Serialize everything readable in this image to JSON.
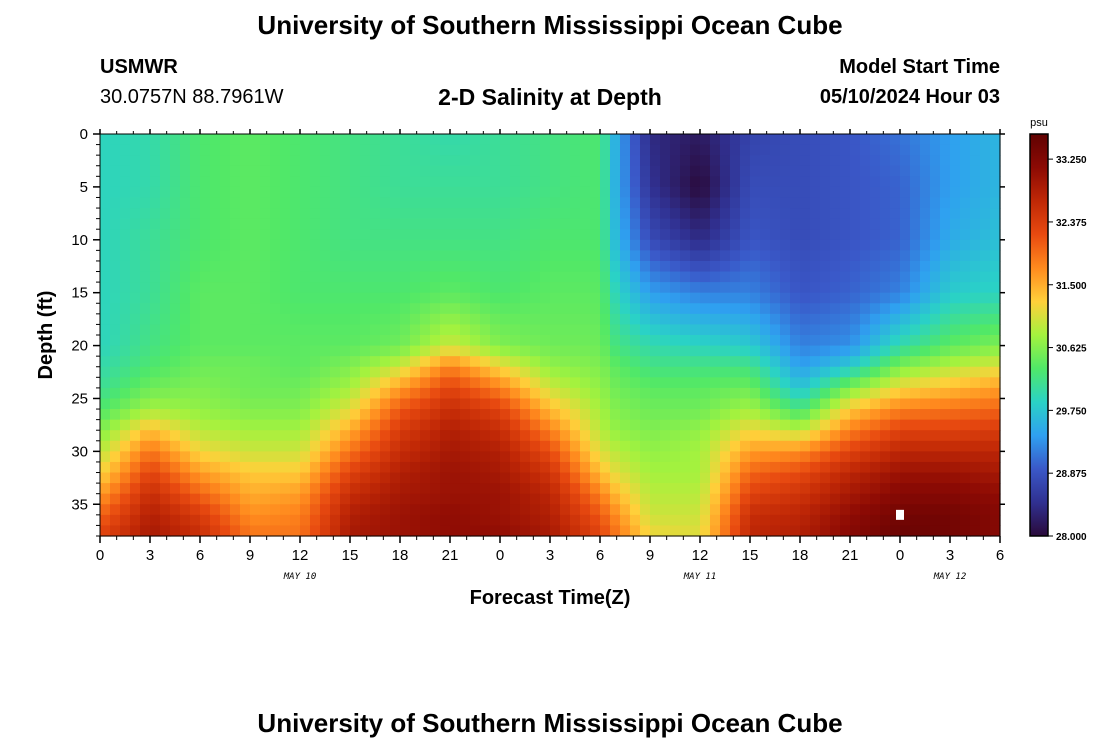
{
  "header": {
    "title": "University of Southern Mississippi Ocean Cube",
    "station": "USMWR",
    "coords": "30.0757N  88.7961W",
    "subtitle": "2-D Salinity at Depth",
    "model_start_label": "Model Start Time",
    "model_start_value": "05/10/2024 Hour 03"
  },
  "footer": {
    "title": "University of Southern Mississippi Ocean Cube"
  },
  "chart_data": {
    "type": "heatmap",
    "title": "2-D Salinity at Depth",
    "xlabel": "Forecast Time(Z)",
    "ylabel": "Depth (ft)",
    "x_ticks": [
      "0",
      "3",
      "6",
      "9",
      "12",
      "15",
      "18",
      "21",
      "0",
      "3",
      "6",
      "9",
      "12",
      "15",
      "18",
      "21",
      "0",
      "3",
      "6"
    ],
    "x_dates": [
      "MAY 10",
      "MAY 11",
      "MAY 12"
    ],
    "y_ticks": [
      0,
      5,
      10,
      15,
      20,
      25,
      30,
      35
    ],
    "ylim": [
      0,
      38
    ],
    "x_range_hours": [
      0,
      54
    ],
    "colorbar": {
      "unit": "psu",
      "range": [
        28.0,
        33.6
      ],
      "ticks": [
        "33.250",
        "32.375",
        "31.500",
        "30.625",
        "29.750",
        "28.875",
        "28.000"
      ],
      "colors": [
        "#2a0a3a",
        "#303090",
        "#3a58c8",
        "#2fa0f0",
        "#2ad2c6",
        "#50e868",
        "#a4f23e",
        "#ffd03a",
        "#ff8a1e",
        "#e84a10",
        "#c02806",
        "#8c0a04",
        "#600202"
      ]
    },
    "salinity_grid": {
      "time_hours": [
        0,
        3,
        6,
        9,
        12,
        15,
        18,
        21,
        24,
        27,
        30,
        31,
        33,
        36,
        39,
        42,
        45,
        48,
        51,
        54
      ],
      "depth_ft": [
        0,
        5,
        10,
        15,
        20,
        22,
        24,
        26,
        28,
        30,
        32,
        34,
        36,
        38
      ],
      "values": [
        [
          29.9,
          29.9,
          29.9,
          29.9,
          29.9,
          30.0,
          30.1,
          30.3,
          30.6,
          30.9,
          31.2,
          31.6,
          32.0,
          32.3
        ],
        [
          30.0,
          30.0,
          30.1,
          30.1,
          30.2,
          30.3,
          30.5,
          30.8,
          31.4,
          31.9,
          32.3,
          32.6,
          32.8,
          32.9
        ],
        [
          30.3,
          30.3,
          30.3,
          30.4,
          30.4,
          30.5,
          30.6,
          30.7,
          30.9,
          31.2,
          31.6,
          32.0,
          32.4,
          32.6
        ],
        [
          30.4,
          30.4,
          30.4,
          30.4,
          30.4,
          30.5,
          30.5,
          30.6,
          30.8,
          31.0,
          31.3,
          31.5,
          31.7,
          31.9
        ],
        [
          30.3,
          30.3,
          30.3,
          30.3,
          30.4,
          30.4,
          30.5,
          30.6,
          30.8,
          31.0,
          31.3,
          31.6,
          31.8,
          31.9
        ],
        [
          30.2,
          30.2,
          30.2,
          30.3,
          30.4,
          30.6,
          30.8,
          31.1,
          31.5,
          31.9,
          32.3,
          32.6,
          32.8,
          32.9
        ],
        [
          30.1,
          30.1,
          30.2,
          30.3,
          30.5,
          31.0,
          31.6,
          32.1,
          32.4,
          32.6,
          32.8,
          32.9,
          33.0,
          33.0
        ],
        [
          30.0,
          30.1,
          30.2,
          30.4,
          31.0,
          31.8,
          32.3,
          32.6,
          32.8,
          32.9,
          33.0,
          33.0,
          33.1,
          33.1
        ],
        [
          30.1,
          30.1,
          30.2,
          30.3,
          30.6,
          31.2,
          31.8,
          32.3,
          32.6,
          32.8,
          32.9,
          33.0,
          33.0,
          33.1
        ],
        [
          30.2,
          30.2,
          30.3,
          30.4,
          30.5,
          30.7,
          31.0,
          31.4,
          31.8,
          32.2,
          32.5,
          32.7,
          32.8,
          32.9
        ],
        [
          30.3,
          30.3,
          30.3,
          30.4,
          30.5,
          30.6,
          30.7,
          30.8,
          30.9,
          31.1,
          31.4,
          31.8,
          32.1,
          32.3
        ],
        [
          29.5,
          29.5,
          29.6,
          29.9,
          30.2,
          30.4,
          30.5,
          30.6,
          30.7,
          30.9,
          31.1,
          31.4,
          31.7,
          31.9
        ],
        [
          28.4,
          28.5,
          28.8,
          29.4,
          30.0,
          30.2,
          30.4,
          30.5,
          30.6,
          30.7,
          30.8,
          30.9,
          31.0,
          31.2
        ],
        [
          28.2,
          28.0,
          28.4,
          29.2,
          29.9,
          30.2,
          30.4,
          30.5,
          30.7,
          30.8,
          30.8,
          30.9,
          31.0,
          31.1
        ],
        [
          28.7,
          28.8,
          28.9,
          29.2,
          29.8,
          30.2,
          30.5,
          30.8,
          31.2,
          31.6,
          32.0,
          32.3,
          32.6,
          32.7
        ],
        [
          28.8,
          28.8,
          28.8,
          28.9,
          29.2,
          29.4,
          29.7,
          30.2,
          30.9,
          31.7,
          32.2,
          32.5,
          32.7,
          32.8
        ],
        [
          28.9,
          28.9,
          28.9,
          29.0,
          29.3,
          29.8,
          30.6,
          31.3,
          31.8,
          32.3,
          32.7,
          32.9,
          33.1,
          33.2
        ],
        [
          29.1,
          29.0,
          29.0,
          29.2,
          30.0,
          30.6,
          31.2,
          31.8,
          32.3,
          32.7,
          33.0,
          33.2,
          33.4,
          33.5
        ],
        [
          29.4,
          29.4,
          29.5,
          29.8,
          30.4,
          30.9,
          31.4,
          31.9,
          32.3,
          32.7,
          33.0,
          33.2,
          33.4,
          33.4
        ],
        [
          29.6,
          29.6,
          29.7,
          29.9,
          30.6,
          31.1,
          31.6,
          32.0,
          32.4,
          32.7,
          32.9,
          33.1,
          33.2,
          33.2
        ]
      ]
    }
  }
}
